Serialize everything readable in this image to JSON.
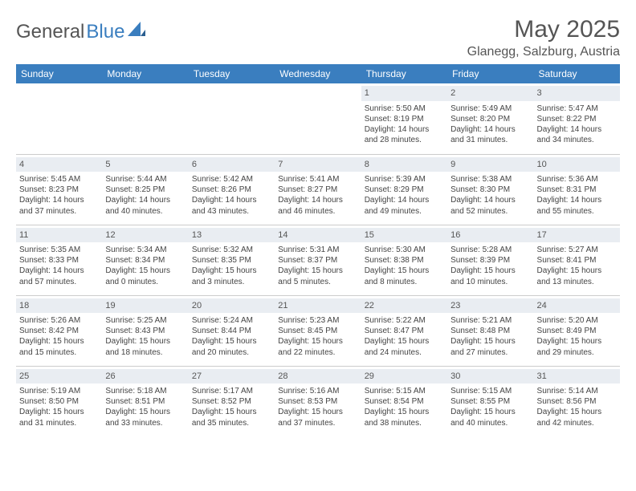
{
  "brand": {
    "word1": "General",
    "word2": "Blue"
  },
  "title": "May 2025",
  "location": "Glanegg, Salzburg, Austria",
  "colors": {
    "header_bg": "#3a7ebf",
    "header_fg": "#ffffff",
    "daynum_bg": "#e9edf2",
    "border": "#cccccc",
    "text": "#444444",
    "title": "#555555"
  },
  "days_of_week": [
    "Sunday",
    "Monday",
    "Tuesday",
    "Wednesday",
    "Thursday",
    "Friday",
    "Saturday"
  ],
  "weeks": [
    [
      null,
      null,
      null,
      null,
      {
        "n": "1",
        "sr": "5:50 AM",
        "ss": "8:19 PM",
        "dl": "14 hours and 28 minutes."
      },
      {
        "n": "2",
        "sr": "5:49 AM",
        "ss": "8:20 PM",
        "dl": "14 hours and 31 minutes."
      },
      {
        "n": "3",
        "sr": "5:47 AM",
        "ss": "8:22 PM",
        "dl": "14 hours and 34 minutes."
      }
    ],
    [
      {
        "n": "4",
        "sr": "5:45 AM",
        "ss": "8:23 PM",
        "dl": "14 hours and 37 minutes."
      },
      {
        "n": "5",
        "sr": "5:44 AM",
        "ss": "8:25 PM",
        "dl": "14 hours and 40 minutes."
      },
      {
        "n": "6",
        "sr": "5:42 AM",
        "ss": "8:26 PM",
        "dl": "14 hours and 43 minutes."
      },
      {
        "n": "7",
        "sr": "5:41 AM",
        "ss": "8:27 PM",
        "dl": "14 hours and 46 minutes."
      },
      {
        "n": "8",
        "sr": "5:39 AM",
        "ss": "8:29 PM",
        "dl": "14 hours and 49 minutes."
      },
      {
        "n": "9",
        "sr": "5:38 AM",
        "ss": "8:30 PM",
        "dl": "14 hours and 52 minutes."
      },
      {
        "n": "10",
        "sr": "5:36 AM",
        "ss": "8:31 PM",
        "dl": "14 hours and 55 minutes."
      }
    ],
    [
      {
        "n": "11",
        "sr": "5:35 AM",
        "ss": "8:33 PM",
        "dl": "14 hours and 57 minutes."
      },
      {
        "n": "12",
        "sr": "5:34 AM",
        "ss": "8:34 PM",
        "dl": "15 hours and 0 minutes."
      },
      {
        "n": "13",
        "sr": "5:32 AM",
        "ss": "8:35 PM",
        "dl": "15 hours and 3 minutes."
      },
      {
        "n": "14",
        "sr": "5:31 AM",
        "ss": "8:37 PM",
        "dl": "15 hours and 5 minutes."
      },
      {
        "n": "15",
        "sr": "5:30 AM",
        "ss": "8:38 PM",
        "dl": "15 hours and 8 minutes."
      },
      {
        "n": "16",
        "sr": "5:28 AM",
        "ss": "8:39 PM",
        "dl": "15 hours and 10 minutes."
      },
      {
        "n": "17",
        "sr": "5:27 AM",
        "ss": "8:41 PM",
        "dl": "15 hours and 13 minutes."
      }
    ],
    [
      {
        "n": "18",
        "sr": "5:26 AM",
        "ss": "8:42 PM",
        "dl": "15 hours and 15 minutes."
      },
      {
        "n": "19",
        "sr": "5:25 AM",
        "ss": "8:43 PM",
        "dl": "15 hours and 18 minutes."
      },
      {
        "n": "20",
        "sr": "5:24 AM",
        "ss": "8:44 PM",
        "dl": "15 hours and 20 minutes."
      },
      {
        "n": "21",
        "sr": "5:23 AM",
        "ss": "8:45 PM",
        "dl": "15 hours and 22 minutes."
      },
      {
        "n": "22",
        "sr": "5:22 AM",
        "ss": "8:47 PM",
        "dl": "15 hours and 24 minutes."
      },
      {
        "n": "23",
        "sr": "5:21 AM",
        "ss": "8:48 PM",
        "dl": "15 hours and 27 minutes."
      },
      {
        "n": "24",
        "sr": "5:20 AM",
        "ss": "8:49 PM",
        "dl": "15 hours and 29 minutes."
      }
    ],
    [
      {
        "n": "25",
        "sr": "5:19 AM",
        "ss": "8:50 PM",
        "dl": "15 hours and 31 minutes."
      },
      {
        "n": "26",
        "sr": "5:18 AM",
        "ss": "8:51 PM",
        "dl": "15 hours and 33 minutes."
      },
      {
        "n": "27",
        "sr": "5:17 AM",
        "ss": "8:52 PM",
        "dl": "15 hours and 35 minutes."
      },
      {
        "n": "28",
        "sr": "5:16 AM",
        "ss": "8:53 PM",
        "dl": "15 hours and 37 minutes."
      },
      {
        "n": "29",
        "sr": "5:15 AM",
        "ss": "8:54 PM",
        "dl": "15 hours and 38 minutes."
      },
      {
        "n": "30",
        "sr": "5:15 AM",
        "ss": "8:55 PM",
        "dl": "15 hours and 40 minutes."
      },
      {
        "n": "31",
        "sr": "5:14 AM",
        "ss": "8:56 PM",
        "dl": "15 hours and 42 minutes."
      }
    ]
  ],
  "labels": {
    "sunrise": "Sunrise:",
    "sunset": "Sunset:",
    "daylight": "Daylight:"
  }
}
